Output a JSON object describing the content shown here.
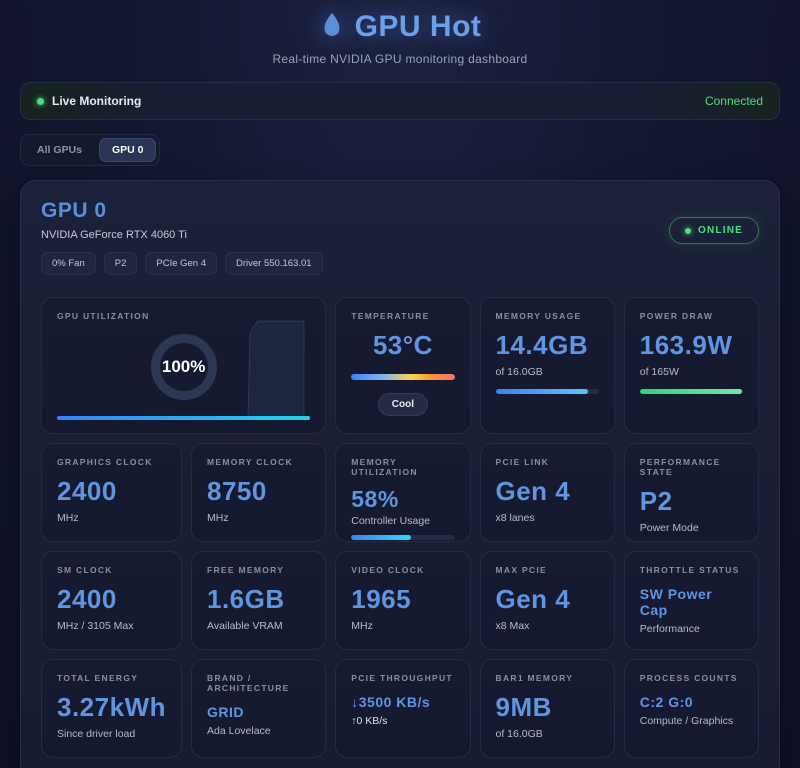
{
  "header": {
    "title": "GPU Hot",
    "subtitle": "Real-time NVIDIA GPU monitoring dashboard"
  },
  "status_bar": {
    "label": "Live Monitoring",
    "connection": "Connected"
  },
  "tabs": [
    {
      "label": "All GPUs",
      "active": false
    },
    {
      "label": "GPU 0",
      "active": true
    }
  ],
  "gpu_panel": {
    "title": "GPU 0",
    "gpu_name": "NVIDIA GeForce RTX 4060 Ti",
    "badges": {
      "fan": "0% Fan",
      "pstate": "P2",
      "pcie": "PCIe Gen 4",
      "driver": "Driver 550.163.01"
    },
    "online_label": "ONLINE"
  },
  "cards": {
    "gpu_utilization": {
      "label": "GPU UTILIZATION",
      "value": "100%",
      "percent": 100
    },
    "temperature": {
      "label": "TEMPERATURE",
      "value": "53°C",
      "badge": "Cool"
    },
    "memory_usage": {
      "label": "MEMORY USAGE",
      "value": "14.4GB",
      "sub": "of 16.0GB",
      "percent": 90
    },
    "power_draw": {
      "label": "POWER DRAW",
      "value": "163.9W",
      "sub": "of 165W",
      "percent": 99
    },
    "graphics_clock": {
      "label": "GRAPHICS CLOCK",
      "value": "2400",
      "sub": "MHz"
    },
    "memory_clock": {
      "label": "MEMORY CLOCK",
      "value": "8750",
      "sub": "MHz"
    },
    "memory_utilization": {
      "label": "MEMORY UTILIZATION",
      "value": "58%",
      "sub": "Controller Usage",
      "percent": 58
    },
    "pcie_link": {
      "label": "PCIE LINK",
      "value": "Gen 4",
      "sub": "x8 lanes"
    },
    "performance_state": {
      "label": "PERFORMANCE STATE",
      "value": "P2",
      "sub": "Power Mode"
    },
    "sm_clock": {
      "label": "SM CLOCK",
      "value": "2400",
      "sub": "MHz / 3105 Max"
    },
    "free_memory": {
      "label": "FREE MEMORY",
      "value": "1.6GB",
      "sub": "Available VRAM"
    },
    "video_clock": {
      "label": "VIDEO CLOCK",
      "value": "1965",
      "sub": "MHz"
    },
    "max_pcie": {
      "label": "MAX PCIE",
      "value": "Gen 4",
      "sub": "x8 Max"
    },
    "throttle_status": {
      "label": "THROTTLE STATUS",
      "value": "SW Power Cap",
      "sub": "Performance"
    },
    "total_energy": {
      "label": "TOTAL ENERGY",
      "value": "3.27kWh",
      "sub": "Since driver load"
    },
    "brand_architecture": {
      "label": "BRAND / ARCHITECTURE",
      "value": "GRID",
      "sub": "Ada Lovelace"
    },
    "pcie_throughput": {
      "label": "PCIE THROUGHPUT",
      "value": "↓3500 KB/s",
      "sub": "↑0 KB/s"
    },
    "bar1_memory": {
      "label": "BAR1 MEMORY",
      "value": "9MB",
      "sub": "of 16.0GB"
    },
    "process_counts": {
      "label": "PROCESS COUNTS",
      "value": "C:2 G:0",
      "sub": "Compute / Graphics"
    }
  },
  "colors": {
    "accent_blue": "#6095e0",
    "status_green": "#4ade80",
    "bar_blue_start": "#3b82f6",
    "bar_cyan_end": "#22d3ee",
    "temp_gradient_end": "#f87171",
    "page_background": "#12152c",
    "card_background": "#151a30"
  }
}
